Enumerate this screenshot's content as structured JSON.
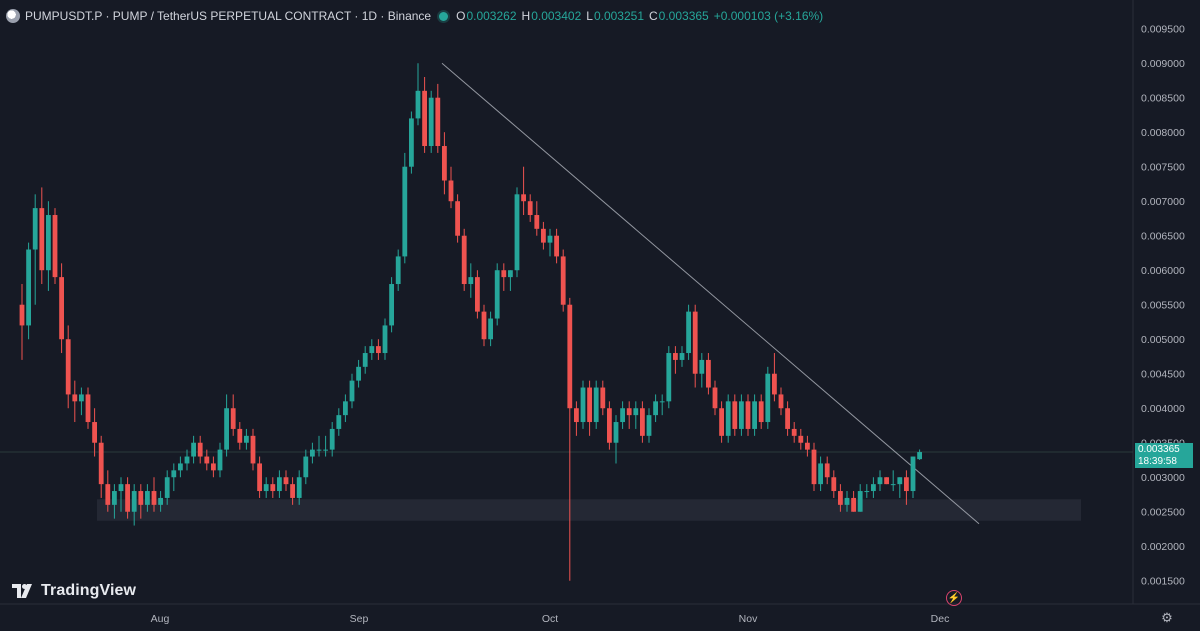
{
  "header": {
    "title": "PUMPUSDT.P · PUMP / TetherUS PERPETUAL CONTRACT · 1D · Binance",
    "open_label": "O",
    "open": "0.003262",
    "high_label": "H",
    "high": "0.003402",
    "low_label": "L",
    "low": "0.003251",
    "close_label": "C",
    "close": "0.003365",
    "change": "+0.000103 (+3.16%)"
  },
  "price_tag": {
    "price": "0.003365",
    "countdown": "18:39:58"
  },
  "logo": {
    "text": "TradingView"
  },
  "icons": {
    "logo": "tradingview-logo-icon",
    "gear": "gear-icon",
    "bolt": "lightning-icon",
    "symbol": "symbol-icon"
  },
  "colors": {
    "up": "#26a69a",
    "down": "#ef5350",
    "background": "#161a25"
  },
  "chart_data": {
    "type": "candlestick",
    "title": "PUMPUSDT.P · PUMP / TetherUS PERPETUAL CONTRACT · 1D · Binance",
    "xlabel": "",
    "ylabel": "",
    "ylim": [
      0.00125,
      0.0098
    ],
    "x_ticks": [
      "Aug",
      "Sep",
      "Oct",
      "Nov",
      "Dec"
    ],
    "y_ticks": [
      "0.009500",
      "0.009000",
      "0.008500",
      "0.008000",
      "0.007500",
      "0.007000",
      "0.006500",
      "0.006000",
      "0.005500",
      "0.005000",
      "0.004500",
      "0.004000",
      "0.003500",
      "0.003000",
      "0.002500",
      "0.002000",
      "0.001500"
    ],
    "current_price": 0.003365,
    "support_zone": [
      0.00237,
      0.00268
    ],
    "trendline": [
      [
        0,
        0.009
      ],
      [
        75,
        0.0025
      ]
    ],
    "start_index_offset": -24,
    "candles": [
      {
        "o": 0.0055,
        "h": 0.0058,
        "l": 0.0047,
        "c": 0.0052
      },
      {
        "o": 0.0052,
        "h": 0.0064,
        "l": 0.005,
        "c": 0.0063
      },
      {
        "o": 0.0063,
        "h": 0.0071,
        "l": 0.0055,
        "c": 0.0069
      },
      {
        "o": 0.0069,
        "h": 0.0072,
        "l": 0.0058,
        "c": 0.006
      },
      {
        "o": 0.006,
        "h": 0.007,
        "l": 0.0057,
        "c": 0.0068
      },
      {
        "o": 0.0068,
        "h": 0.0069,
        "l": 0.0058,
        "c": 0.0059
      },
      {
        "o": 0.0059,
        "h": 0.0061,
        "l": 0.0048,
        "c": 0.005
      },
      {
        "o": 0.005,
        "h": 0.0052,
        "l": 0.004,
        "c": 0.0042
      },
      {
        "o": 0.0042,
        "h": 0.0044,
        "l": 0.0038,
        "c": 0.0041
      },
      {
        "o": 0.0041,
        "h": 0.0043,
        "l": 0.0039,
        "c": 0.0042
      },
      {
        "o": 0.0042,
        "h": 0.0043,
        "l": 0.0037,
        "c": 0.0038
      },
      {
        "o": 0.0038,
        "h": 0.004,
        "l": 0.0033,
        "c": 0.0035
      },
      {
        "o": 0.0035,
        "h": 0.0036,
        "l": 0.0027,
        "c": 0.0029
      },
      {
        "o": 0.0029,
        "h": 0.0031,
        "l": 0.0025,
        "c": 0.0026
      },
      {
        "o": 0.0026,
        "h": 0.0029,
        "l": 0.0024,
        "c": 0.0028
      },
      {
        "o": 0.0028,
        "h": 0.003,
        "l": 0.0025,
        "c": 0.0029
      },
      {
        "o": 0.0029,
        "h": 0.003,
        "l": 0.0024,
        "c": 0.0025
      },
      {
        "o": 0.0025,
        "h": 0.0029,
        "l": 0.0023,
        "c": 0.0028
      },
      {
        "o": 0.0028,
        "h": 0.0029,
        "l": 0.0024,
        "c": 0.0026
      },
      {
        "o": 0.0026,
        "h": 0.0029,
        "l": 0.0025,
        "c": 0.0028
      },
      {
        "o": 0.0028,
        "h": 0.003,
        "l": 0.0025,
        "c": 0.0026
      },
      {
        "o": 0.0026,
        "h": 0.0028,
        "l": 0.0025,
        "c": 0.0027
      },
      {
        "o": 0.0027,
        "h": 0.0031,
        "l": 0.0026,
        "c": 0.003
      },
      {
        "o": 0.003,
        "h": 0.0032,
        "l": 0.0028,
        "c": 0.0031
      },
      {
        "o": 0.0031,
        "h": 0.0033,
        "l": 0.003,
        "c": 0.0032
      },
      {
        "o": 0.0032,
        "h": 0.0034,
        "l": 0.0031,
        "c": 0.0033
      },
      {
        "o": 0.0033,
        "h": 0.0036,
        "l": 0.0032,
        "c": 0.0035
      },
      {
        "o": 0.0035,
        "h": 0.0036,
        "l": 0.0032,
        "c": 0.0033
      },
      {
        "o": 0.0033,
        "h": 0.0034,
        "l": 0.0031,
        "c": 0.0032
      },
      {
        "o": 0.0032,
        "h": 0.0033,
        "l": 0.003,
        "c": 0.0031
      },
      {
        "o": 0.0031,
        "h": 0.0035,
        "l": 0.003,
        "c": 0.0034
      },
      {
        "o": 0.0034,
        "h": 0.0042,
        "l": 0.0033,
        "c": 0.004
      },
      {
        "o": 0.004,
        "h": 0.0042,
        "l": 0.0036,
        "c": 0.0037
      },
      {
        "o": 0.0037,
        "h": 0.0038,
        "l": 0.0034,
        "c": 0.0035
      },
      {
        "o": 0.0035,
        "h": 0.0037,
        "l": 0.0034,
        "c": 0.0036
      },
      {
        "o": 0.0036,
        "h": 0.0037,
        "l": 0.0031,
        "c": 0.0032
      },
      {
        "o": 0.0032,
        "h": 0.0033,
        "l": 0.0027,
        "c": 0.0028
      },
      {
        "o": 0.0028,
        "h": 0.003,
        "l": 0.0027,
        "c": 0.0029
      },
      {
        "o": 0.0029,
        "h": 0.003,
        "l": 0.0027,
        "c": 0.0028
      },
      {
        "o": 0.0028,
        "h": 0.0031,
        "l": 0.0027,
        "c": 0.003
      },
      {
        "o": 0.003,
        "h": 0.0031,
        "l": 0.0028,
        "c": 0.0029
      },
      {
        "o": 0.0029,
        "h": 0.003,
        "l": 0.0026,
        "c": 0.0027
      },
      {
        "o": 0.0027,
        "h": 0.0031,
        "l": 0.0026,
        "c": 0.003
      },
      {
        "o": 0.003,
        "h": 0.0034,
        "l": 0.0029,
        "c": 0.0033
      },
      {
        "o": 0.0033,
        "h": 0.0035,
        "l": 0.0032,
        "c": 0.0034
      },
      {
        "o": 0.0034,
        "h": 0.0036,
        "l": 0.0033,
        "c": 0.0034
      },
      {
        "o": 0.0034,
        "h": 0.0036,
        "l": 0.0033,
        "c": 0.0034
      },
      {
        "o": 0.0034,
        "h": 0.0038,
        "l": 0.0033,
        "c": 0.0037
      },
      {
        "o": 0.0037,
        "h": 0.004,
        "l": 0.0036,
        "c": 0.0039
      },
      {
        "o": 0.0039,
        "h": 0.0042,
        "l": 0.0038,
        "c": 0.0041
      },
      {
        "o": 0.0041,
        "h": 0.0045,
        "l": 0.004,
        "c": 0.0044
      },
      {
        "o": 0.0044,
        "h": 0.0047,
        "l": 0.0043,
        "c": 0.0046
      },
      {
        "o": 0.0046,
        "h": 0.0049,
        "l": 0.0045,
        "c": 0.0048
      },
      {
        "o": 0.0048,
        "h": 0.005,
        "l": 0.0047,
        "c": 0.0049
      },
      {
        "o": 0.0049,
        "h": 0.005,
        "l": 0.0047,
        "c": 0.0048
      },
      {
        "o": 0.0048,
        "h": 0.0053,
        "l": 0.0047,
        "c": 0.0052
      },
      {
        "o": 0.0052,
        "h": 0.0059,
        "l": 0.0051,
        "c": 0.0058
      },
      {
        "o": 0.0058,
        "h": 0.0063,
        "l": 0.0057,
        "c": 0.0062
      },
      {
        "o": 0.0062,
        "h": 0.0077,
        "l": 0.0061,
        "c": 0.0075
      },
      {
        "o": 0.0075,
        "h": 0.0083,
        "l": 0.0074,
        "c": 0.0082
      },
      {
        "o": 0.0082,
        "h": 0.009,
        "l": 0.0081,
        "c": 0.0086
      },
      {
        "o": 0.0086,
        "h": 0.0088,
        "l": 0.0077,
        "c": 0.0078
      },
      {
        "o": 0.0078,
        "h": 0.0086,
        "l": 0.0077,
        "c": 0.0085
      },
      {
        "o": 0.0085,
        "h": 0.0087,
        "l": 0.0077,
        "c": 0.0078
      },
      {
        "o": 0.0078,
        "h": 0.008,
        "l": 0.0071,
        "c": 0.0073
      },
      {
        "o": 0.0073,
        "h": 0.0075,
        "l": 0.0069,
        "c": 0.007
      },
      {
        "o": 0.007,
        "h": 0.0071,
        "l": 0.0064,
        "c": 0.0065
      },
      {
        "o": 0.0065,
        "h": 0.0066,
        "l": 0.0057,
        "c": 0.0058
      },
      {
        "o": 0.0058,
        "h": 0.0061,
        "l": 0.0056,
        "c": 0.0059
      },
      {
        "o": 0.0059,
        "h": 0.006,
        "l": 0.0053,
        "c": 0.0054
      },
      {
        "o": 0.0054,
        "h": 0.0055,
        "l": 0.0049,
        "c": 0.005
      },
      {
        "o": 0.005,
        "h": 0.0054,
        "l": 0.0049,
        "c": 0.0053
      },
      {
        "o": 0.0053,
        "h": 0.0061,
        "l": 0.0052,
        "c": 0.006
      },
      {
        "o": 0.006,
        "h": 0.0061,
        "l": 0.0057,
        "c": 0.0059
      },
      {
        "o": 0.0059,
        "h": 0.006,
        "l": 0.0057,
        "c": 0.006
      },
      {
        "o": 0.006,
        "h": 0.0072,
        "l": 0.0059,
        "c": 0.0071
      },
      {
        "o": 0.0071,
        "h": 0.0075,
        "l": 0.0068,
        "c": 0.007
      },
      {
        "o": 0.007,
        "h": 0.0071,
        "l": 0.0067,
        "c": 0.0068
      },
      {
        "o": 0.0068,
        "h": 0.007,
        "l": 0.0065,
        "c": 0.0066
      },
      {
        "o": 0.0066,
        "h": 0.0067,
        "l": 0.0063,
        "c": 0.0064
      },
      {
        "o": 0.0064,
        "h": 0.0066,
        "l": 0.0062,
        "c": 0.0065
      },
      {
        "o": 0.0065,
        "h": 0.0066,
        "l": 0.0061,
        "c": 0.0062
      },
      {
        "o": 0.0062,
        "h": 0.0063,
        "l": 0.0054,
        "c": 0.0055
      },
      {
        "o": 0.0055,
        "h": 0.0056,
        "l": 0.0015,
        "c": 0.004
      },
      {
        "o": 0.004,
        "h": 0.0041,
        "l": 0.0036,
        "c": 0.0038
      },
      {
        "o": 0.0038,
        "h": 0.0044,
        "l": 0.0037,
        "c": 0.0043
      },
      {
        "o": 0.0043,
        "h": 0.0044,
        "l": 0.0036,
        "c": 0.0038
      },
      {
        "o": 0.0038,
        "h": 0.0044,
        "l": 0.0037,
        "c": 0.0043
      },
      {
        "o": 0.0043,
        "h": 0.0044,
        "l": 0.0039,
        "c": 0.004
      },
      {
        "o": 0.004,
        "h": 0.0041,
        "l": 0.0034,
        "c": 0.0035
      },
      {
        "o": 0.0035,
        "h": 0.0039,
        "l": 0.0032,
        "c": 0.0038
      },
      {
        "o": 0.0038,
        "h": 0.0041,
        "l": 0.0037,
        "c": 0.004
      },
      {
        "o": 0.004,
        "h": 0.0041,
        "l": 0.0037,
        "c": 0.0039
      },
      {
        "o": 0.0039,
        "h": 0.0041,
        "l": 0.0037,
        "c": 0.004
      },
      {
        "o": 0.004,
        "h": 0.0041,
        "l": 0.0035,
        "c": 0.0036
      },
      {
        "o": 0.0036,
        "h": 0.004,
        "l": 0.0035,
        "c": 0.0039
      },
      {
        "o": 0.0039,
        "h": 0.0042,
        "l": 0.0038,
        "c": 0.0041
      },
      {
        "o": 0.0041,
        "h": 0.0042,
        "l": 0.0039,
        "c": 0.0041
      },
      {
        "o": 0.0041,
        "h": 0.0049,
        "l": 0.004,
        "c": 0.0048
      },
      {
        "o": 0.0048,
        "h": 0.0049,
        "l": 0.0045,
        "c": 0.0047
      },
      {
        "o": 0.0047,
        "h": 0.0049,
        "l": 0.0046,
        "c": 0.0048
      },
      {
        "o": 0.0048,
        "h": 0.0055,
        "l": 0.0047,
        "c": 0.0054
      },
      {
        "o": 0.0054,
        "h": 0.0055,
        "l": 0.0043,
        "c": 0.0045
      },
      {
        "o": 0.0045,
        "h": 0.0048,
        "l": 0.0043,
        "c": 0.0047
      },
      {
        "o": 0.0047,
        "h": 0.0048,
        "l": 0.0042,
        "c": 0.0043
      },
      {
        "o": 0.0043,
        "h": 0.0044,
        "l": 0.0039,
        "c": 0.004
      },
      {
        "o": 0.004,
        "h": 0.0041,
        "l": 0.0035,
        "c": 0.0036
      },
      {
        "o": 0.0036,
        "h": 0.0042,
        "l": 0.0035,
        "c": 0.0041
      },
      {
        "o": 0.0041,
        "h": 0.0042,
        "l": 0.0036,
        "c": 0.0037
      },
      {
        "o": 0.0037,
        "h": 0.0042,
        "l": 0.0036,
        "c": 0.0041
      },
      {
        "o": 0.0041,
        "h": 0.0042,
        "l": 0.0036,
        "c": 0.0037
      },
      {
        "o": 0.0037,
        "h": 0.0042,
        "l": 0.0036,
        "c": 0.0041
      },
      {
        "o": 0.0041,
        "h": 0.0042,
        "l": 0.0037,
        "c": 0.0038
      },
      {
        "o": 0.0038,
        "h": 0.0046,
        "l": 0.0037,
        "c": 0.0045
      },
      {
        "o": 0.0045,
        "h": 0.0048,
        "l": 0.0041,
        "c": 0.0042
      },
      {
        "o": 0.0042,
        "h": 0.0043,
        "l": 0.0039,
        "c": 0.004
      },
      {
        "o": 0.004,
        "h": 0.0041,
        "l": 0.0036,
        "c": 0.0037
      },
      {
        "o": 0.0037,
        "h": 0.0038,
        "l": 0.0035,
        "c": 0.0036
      },
      {
        "o": 0.0036,
        "h": 0.0037,
        "l": 0.0034,
        "c": 0.0035
      },
      {
        "o": 0.0035,
        "h": 0.0036,
        "l": 0.0033,
        "c": 0.0034
      },
      {
        "o": 0.0034,
        "h": 0.0035,
        "l": 0.0028,
        "c": 0.0029
      },
      {
        "o": 0.0029,
        "h": 0.0033,
        "l": 0.0028,
        "c": 0.0032
      },
      {
        "o": 0.0032,
        "h": 0.0033,
        "l": 0.0029,
        "c": 0.003
      },
      {
        "o": 0.003,
        "h": 0.0031,
        "l": 0.0027,
        "c": 0.0028
      },
      {
        "o": 0.0028,
        "h": 0.0029,
        "l": 0.0025,
        "c": 0.0026
      },
      {
        "o": 0.0026,
        "h": 0.0028,
        "l": 0.0025,
        "c": 0.0027
      },
      {
        "o": 0.0027,
        "h": 0.0028,
        "l": 0.0025,
        "c": 0.0025
      },
      {
        "o": 0.0025,
        "h": 0.0029,
        "l": 0.0025,
        "c": 0.0028
      },
      {
        "o": 0.0028,
        "h": 0.0029,
        "l": 0.0027,
        "c": 0.0028
      },
      {
        "o": 0.0028,
        "h": 0.003,
        "l": 0.0027,
        "c": 0.0029
      },
      {
        "o": 0.0029,
        "h": 0.0031,
        "l": 0.0028,
        "c": 0.003
      },
      {
        "o": 0.003,
        "h": 0.003,
        "l": 0.0029,
        "c": 0.0029
      },
      {
        "o": 0.0029,
        "h": 0.0031,
        "l": 0.0028,
        "c": 0.0029
      },
      {
        "o": 0.0029,
        "h": 0.003,
        "l": 0.0027,
        "c": 0.003
      },
      {
        "o": 0.003,
        "h": 0.0031,
        "l": 0.0026,
        "c": 0.0028
      },
      {
        "o": 0.0028,
        "h": 0.0033,
        "l": 0.0027,
        "c": 0.0033
      },
      {
        "o": 0.003262,
        "h": 0.003402,
        "l": 0.003251,
        "c": 0.003365
      }
    ]
  }
}
